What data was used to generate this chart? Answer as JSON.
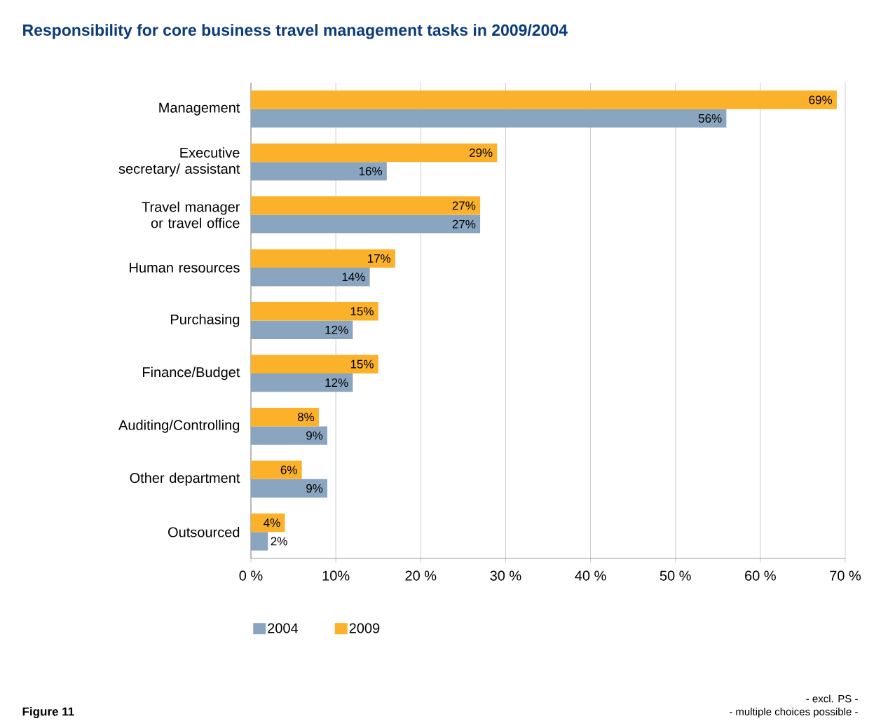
{
  "chart_data": {
    "type": "bar",
    "orientation": "horizontal",
    "title": "Responsibility for core business travel management tasks in 2009/2004",
    "categories": [
      "Management",
      "Executive secretary/ assistant",
      "Travel manager or travel office",
      "Human resources",
      "Purchasing",
      "Finance/Budget",
      "Auditing/Controlling",
      "Other department",
      "Outsourced"
    ],
    "series": [
      {
        "name": "2004",
        "color": "#8aa5c0",
        "values": [
          56,
          16,
          27,
          14,
          12,
          12,
          9,
          9,
          2
        ],
        "value_labels": [
          "56%",
          "16%",
          "27%",
          "14%",
          "12%",
          "12%",
          "9%",
          "9%",
          "2%"
        ]
      },
      {
        "name": "2009",
        "color": "#fbb12a",
        "values": [
          69,
          29,
          27,
          17,
          15,
          15,
          8,
          6,
          4
        ],
        "value_labels": [
          "69%",
          "29%",
          "27%",
          "17%",
          "15%",
          "15%",
          "8%",
          "6%",
          "4%"
        ]
      }
    ],
    "xlim": [
      0,
      70
    ],
    "xticks": [
      {
        "value": 0,
        "label": "0 %"
      },
      {
        "value": 10,
        "label": "10%"
      },
      {
        "value": 20,
        "label": "20 %"
      },
      {
        "value": 30,
        "label": "30 %"
      },
      {
        "value": 40,
        "label": "40 %"
      },
      {
        "value": 50,
        "label": "50 %"
      },
      {
        "value": 60,
        "label": "60 %"
      },
      {
        "value": 70,
        "label": "70 %"
      }
    ],
    "grid": "x",
    "legend": "bottom",
    "annotations": [
      "Figure 11",
      "- excl. PS -",
      "- multiple choices possible -"
    ]
  }
}
